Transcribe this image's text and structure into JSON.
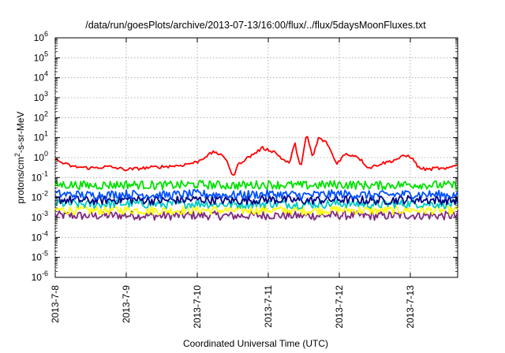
{
  "chart_data": {
    "type": "line",
    "title": "/data/run/goesPlots/archive/2013-07-13/16:00/flux/../flux/5daysMoonFluxes.txt",
    "xlabel": "Coordinated Universal Time (UTC)",
    "ylabel": "protons/cm²-s-sr-MeV",
    "ylabel_parts": {
      "pre": "protons/cm",
      "sup": "2",
      "post": "-s-sr-MeV"
    },
    "y_scale": "log",
    "ylim": [
      1e-06,
      1000000.0
    ],
    "y_ticks": [
      {
        "base": "10",
        "exp": "-6"
      },
      {
        "base": "10",
        "exp": "-5"
      },
      {
        "base": "10",
        "exp": "-4"
      },
      {
        "base": "10",
        "exp": "-3"
      },
      {
        "base": "10",
        "exp": "-2"
      },
      {
        "base": "10",
        "exp": "-1"
      },
      {
        "base": "10",
        "exp": "0"
      },
      {
        "base": "10",
        "exp": "1"
      },
      {
        "base": "10",
        "exp": "2"
      },
      {
        "base": "10",
        "exp": "3"
      },
      {
        "base": "10",
        "exp": "4"
      },
      {
        "base": "10",
        "exp": "5"
      },
      {
        "base": "10",
        "exp": "6"
      }
    ],
    "x_ticks": [
      "2013-7-8",
      "2013-7-9",
      "2013-7-10",
      "2013-7-11",
      "2013-7-12",
      "2013-7-13"
    ],
    "xlim": [
      "2013-07-08 00:00",
      "2013-07-13 16:00"
    ],
    "grid": true,
    "series": [
      {
        "color": "#7f2a7f",
        "x": [
          "2013-07-08 00:00",
          "2013-07-08 12:00",
          "2013-07-09 00:00",
          "2013-07-09 12:00",
          "2013-07-10 00:00",
          "2013-07-10 12:00",
          "2013-07-11 00:00",
          "2013-07-11 12:00",
          "2013-07-12 00:00",
          "2013-07-12 12:00",
          "2013-07-13 00:00",
          "2013-07-13 16:00"
        ],
        "values": [
          0.0013,
          0.0012,
          0.0013,
          0.0012,
          0.0013,
          0.0012,
          0.0013,
          0.0012,
          0.0013,
          0.0012,
          0.0013,
          0.0012
        ]
      },
      {
        "color": "#ffff00",
        "x": [
          "2013-07-08 00:00",
          "2013-07-08 12:00",
          "2013-07-09 00:00",
          "2013-07-09 12:00",
          "2013-07-10 00:00",
          "2013-07-10 12:00",
          "2013-07-11 00:00",
          "2013-07-11 12:00",
          "2013-07-12 00:00",
          "2013-07-12 12:00",
          "2013-07-13 00:00",
          "2013-07-13 16:00"
        ],
        "values": [
          0.0024,
          0.0022,
          0.0024,
          0.0022,
          0.0024,
          0.0022,
          0.0024,
          0.0022,
          0.0024,
          0.0022,
          0.0024,
          0.0022
        ]
      },
      {
        "color": "#00c8c8",
        "x": [
          "2013-07-08 00:00",
          "2013-07-08 12:00",
          "2013-07-09 00:00",
          "2013-07-09 12:00",
          "2013-07-10 00:00",
          "2013-07-10 12:00",
          "2013-07-11 00:00",
          "2013-07-11 12:00",
          "2013-07-12 00:00",
          "2013-07-12 12:00",
          "2013-07-13 00:00",
          "2013-07-13 16:00"
        ],
        "values": [
          0.005,
          0.0045,
          0.005,
          0.0045,
          0.005,
          0.0045,
          0.005,
          0.0045,
          0.005,
          0.0045,
          0.005,
          0.0045
        ]
      },
      {
        "color": "#000080",
        "x": [
          "2013-07-08 00:00",
          "2013-07-08 12:00",
          "2013-07-09 00:00",
          "2013-07-09 12:00",
          "2013-07-10 00:00",
          "2013-07-10 12:00",
          "2013-07-11 00:00",
          "2013-07-11 12:00",
          "2013-07-12 00:00",
          "2013-07-12 12:00",
          "2013-07-13 00:00",
          "2013-07-13 16:00"
        ],
        "values": [
          0.008,
          0.007,
          0.008,
          0.007,
          0.008,
          0.007,
          0.008,
          0.007,
          0.008,
          0.007,
          0.008,
          0.007
        ]
      },
      {
        "color": "#0050ff",
        "x": [
          "2013-07-08 00:00",
          "2013-07-08 12:00",
          "2013-07-09 00:00",
          "2013-07-09 12:00",
          "2013-07-10 00:00",
          "2013-07-10 12:00",
          "2013-07-11 00:00",
          "2013-07-11 12:00",
          "2013-07-12 00:00",
          "2013-07-12 12:00",
          "2013-07-13 00:00",
          "2013-07-13 16:00"
        ],
        "values": [
          0.015,
          0.013,
          0.015,
          0.013,
          0.015,
          0.013,
          0.015,
          0.013,
          0.015,
          0.013,
          0.015,
          0.013
        ]
      },
      {
        "color": "#00e000",
        "x": [
          "2013-07-08 00:00",
          "2013-07-08 12:00",
          "2013-07-09 00:00",
          "2013-07-09 12:00",
          "2013-07-10 00:00",
          "2013-07-10 12:00",
          "2013-07-11 00:00",
          "2013-07-11 12:00",
          "2013-07-12 00:00",
          "2013-07-12 12:00",
          "2013-07-13 00:00",
          "2013-07-13 16:00"
        ],
        "values": [
          0.045,
          0.04,
          0.045,
          0.04,
          0.045,
          0.04,
          0.045,
          0.04,
          0.045,
          0.04,
          0.045,
          0.04
        ]
      },
      {
        "color": "#ff0000",
        "x": [
          "2013-07-08 00:00",
          "2013-07-08 03:00",
          "2013-07-08 06:00",
          "2013-07-08 12:00",
          "2013-07-08 18:00",
          "2013-07-09 00:00",
          "2013-07-09 06:00",
          "2013-07-09 12:00",
          "2013-07-09 18:00",
          "2013-07-10 00:00",
          "2013-07-10 03:00",
          "2013-07-10 06:00",
          "2013-07-10 10:00",
          "2013-07-10 12:00",
          "2013-07-10 14:00",
          "2013-07-10 18:00",
          "2013-07-10 22:00",
          "2013-07-11 02:00",
          "2013-07-11 05:00",
          "2013-07-11 07:00",
          "2013-07-11 09:00",
          "2013-07-11 11:00",
          "2013-07-11 13:00",
          "2013-07-11 15:00",
          "2013-07-11 17:00",
          "2013-07-11 20:00",
          "2013-07-11 23:00",
          "2013-07-12 02:00",
          "2013-07-12 06:00",
          "2013-07-12 10:00",
          "2013-07-12 14:00",
          "2013-07-12 18:00",
          "2013-07-12 22:00",
          "2013-07-13 00:00",
          "2013-07-13 03:00",
          "2013-07-13 06:00",
          "2013-07-13 09:00",
          "2013-07-13 12:00",
          "2013-07-13 16:00"
        ],
        "values": [
          0.8,
          0.5,
          0.35,
          0.3,
          0.35,
          0.25,
          0.3,
          0.35,
          0.4,
          0.6,
          1.2,
          2,
          0.8,
          0.1,
          0.5,
          1.2,
          3,
          2,
          0.8,
          0.5,
          5,
          0.3,
          15,
          1,
          10,
          5,
          0.5,
          1.5,
          1.2,
          0.3,
          0.5,
          0.7,
          1.2,
          1.2,
          0.3,
          0.25,
          0.3,
          0.25,
          0.5
        ]
      }
    ]
  }
}
